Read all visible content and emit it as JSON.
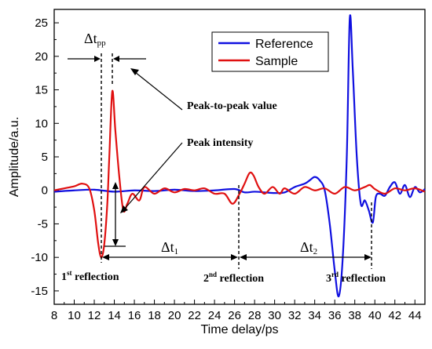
{
  "chart_data": {
    "type": "line",
    "title": "",
    "xlabel": "Time delay/ps",
    "ylabel": "Amplitude/a.u.",
    "xlim": [
      8,
      45
    ],
    "ylim": [
      -17,
      27
    ],
    "xticks": [
      8,
      10,
      12,
      14,
      16,
      18,
      20,
      22,
      24,
      26,
      28,
      30,
      32,
      34,
      36,
      38,
      40,
      42,
      44
    ],
    "yticks": [
      -15,
      -10,
      -5,
      0,
      5,
      10,
      15,
      20,
      25
    ],
    "grid": false,
    "legend_position": "top-right",
    "series": [
      {
        "name": "Reference",
        "color": "#1010e0",
        "x": [
          8,
          10,
          12,
          14,
          16,
          18,
          20,
          22,
          24,
          26,
          27,
          28,
          29,
          30,
          31,
          32,
          33,
          33.5,
          34,
          34.5,
          35,
          35.5,
          36,
          36.4,
          36.8,
          37.2,
          37.5,
          37.8,
          38.2,
          38.6,
          39,
          39.4,
          39.8,
          40.1,
          40.5,
          41,
          41.5,
          42,
          42.5,
          43,
          43.5,
          44,
          44.5,
          45
        ],
        "y": [
          -0.2,
          0,
          0.1,
          -0.2,
          0,
          -0.1,
          0.1,
          -0.1,
          0,
          0.2,
          -0.3,
          -0.2,
          -0.3,
          -0.4,
          -0.3,
          0.5,
          1.0,
          1.5,
          2.0,
          1.5,
          0,
          -5,
          -12,
          -15.8,
          -10,
          5,
          25.7,
          18,
          5,
          -2,
          -1.5,
          -3,
          -4.8,
          -1,
          -0.5,
          -0.8,
          0.5,
          1.2,
          -0.5,
          0.8,
          -1,
          0.5,
          -0.3,
          0.2
        ]
      },
      {
        "name": "Sample",
        "color": "#e01010",
        "x": [
          8,
          9,
          10,
          10.8,
          11.5,
          12,
          12.4,
          12.7,
          13,
          13.3,
          13.5,
          13.8,
          14.1,
          14.5,
          14.9,
          15.3,
          15.8,
          16.5,
          17,
          18,
          19,
          20,
          21,
          22,
          23,
          24,
          25,
          25.8,
          26.5,
          27,
          27.5,
          27.9,
          28.4,
          29,
          29.8,
          30.5,
          31,
          32,
          33,
          34,
          35,
          36,
          37,
          38,
          39,
          39.5,
          40,
          41,
          42,
          43,
          44,
          45
        ],
        "y": [
          0,
          0.3,
          0.6,
          1.0,
          0.3,
          -3,
          -8,
          -10,
          -8,
          -2,
          5,
          14.8,
          9,
          2,
          -3,
          -2,
          -0.5,
          -1.5,
          0.5,
          -0.5,
          0.3,
          -0.3,
          0.2,
          0,
          0.3,
          -0.5,
          -0.5,
          -2,
          -0.5,
          1,
          2.6,
          2.2,
          0.5,
          -0.5,
          0.5,
          -0.5,
          0.3,
          -0.5,
          0.5,
          0,
          0.3,
          -0.5,
          0.5,
          0,
          0.5,
          0.8,
          0.2,
          -0.5,
          0.3,
          0,
          0.3,
          -0.2
        ]
      }
    ],
    "annotations": {
      "dt_pp": "Δt",
      "dt_pp_sub": "pp",
      "dt1": "Δt",
      "dt1_sub": "1",
      "dt2": "Δt",
      "dt2_sub": "2",
      "peak_to_peak": "Peak-to-peak value",
      "peak_intensity": "Peak intensity",
      "reflection1_num": "1",
      "reflection1_sup": "st",
      "reflection2_num": "2",
      "reflection2_sup": "nd",
      "reflection3_num": "3",
      "reflection3_sup": "rd",
      "reflection_word": " reflection"
    }
  }
}
